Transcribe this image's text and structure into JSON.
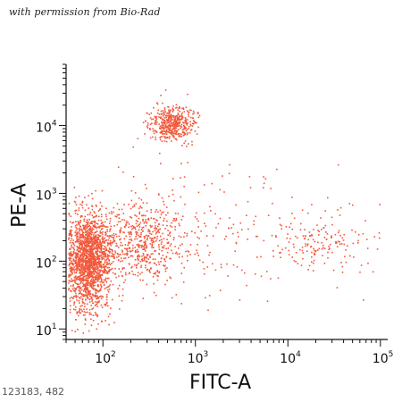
{
  "header": {
    "credit": "with permission from Bio-Rad"
  },
  "footer": {
    "caption": "123183, 482"
  },
  "colors": {
    "points": "#f2583b",
    "axis": "#111111",
    "background": "#ffffff"
  },
  "chart_data": {
    "type": "scatter",
    "title": "",
    "xlabel": "FITC-A",
    "ylabel": "PE-A",
    "x_scale": "log",
    "y_scale": "log",
    "xlim": [
      40,
      120000
    ],
    "ylim": [
      7,
      80000
    ],
    "x_ticks": [
      {
        "value": 100,
        "base": "10",
        "exp": "2"
      },
      {
        "value": 1000,
        "base": "10",
        "exp": "3"
      },
      {
        "value": 10000,
        "base": "10",
        "exp": "4"
      },
      {
        "value": 100000,
        "base": "10",
        "exp": "5"
      }
    ],
    "y_ticks": [
      {
        "value": 10,
        "base": "10",
        "exp": "1"
      },
      {
        "value": 100,
        "base": "10",
        "exp": "2"
      },
      {
        "value": 1000,
        "base": "10",
        "exp": "3"
      },
      {
        "value": 10000,
        "base": "10",
        "exp": "4"
      }
    ],
    "grid": false,
    "legend": "none",
    "populations": [
      {
        "center_x": 70,
        "center_y": 100,
        "spread_x_decades": 0.12,
        "spread_y_decades": 0.35,
        "count": 1700,
        "shape": "dense-low-left"
      },
      {
        "center_x": 250,
        "center_y": 200,
        "spread_x_decades": 0.25,
        "spread_y_decades": 0.3,
        "count": 550,
        "shape": "diffuse"
      },
      {
        "center_x": 550,
        "center_y": 11000,
        "spread_x_decades": 0.12,
        "spread_y_decades": 0.13,
        "count": 450,
        "shape": "tight-upper"
      },
      {
        "center_x": 22000,
        "center_y": 200,
        "spread_x_decades": 0.28,
        "spread_y_decades": 0.2,
        "count": 160,
        "shape": "right-cluster"
      },
      {
        "center_x": 1500,
        "center_y": 300,
        "spread_x_decades": 0.6,
        "spread_y_decades": 0.5,
        "count": 180,
        "shape": "background"
      }
    ]
  }
}
